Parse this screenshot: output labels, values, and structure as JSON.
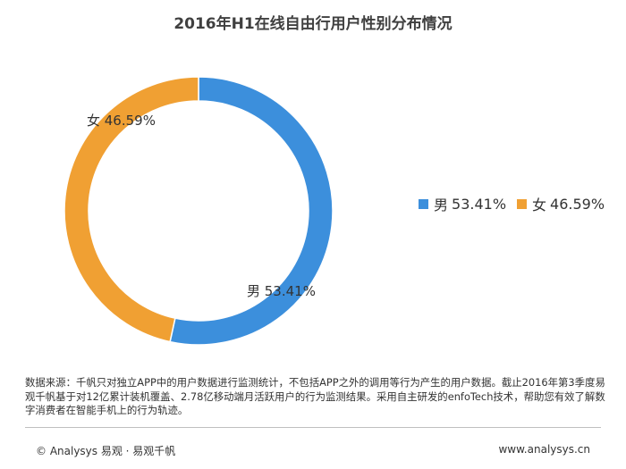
{
  "chart_data": {
    "type": "pie",
    "title": "2016年H1在线自由行用户性别分布情况",
    "categories": [
      "男",
      "女"
    ],
    "values": [
      53.41,
      46.59
    ],
    "value_labels": [
      "53.41%",
      "46.59%"
    ],
    "colors": [
      "#3c8fdc",
      "#f0a033"
    ],
    "donut": true,
    "legend_position": "right",
    "legend": [
      {
        "name": "男",
        "value_label": "53.41%",
        "color": "#3c8fdc"
      },
      {
        "name": "女",
        "value_label": "46.59%",
        "color": "#f0a033"
      }
    ]
  },
  "note": "数据来源：千帆只对独立APP中的用户数据进行监测统计，不包括APP之外的调用等行为产生的用户数据。截止2016年第3季度易观千帆基于对12亿累计装机覆盖、2.78亿移动端月活跃用户的行为监测结果。采用自主研发的enfoTech技术，帮助您有效了解数字消费者在智能手机上的行为轨迹。",
  "footer": {
    "left": "© Analysys 易观 · 易观千帆",
    "right": "www.analysys.cn"
  }
}
